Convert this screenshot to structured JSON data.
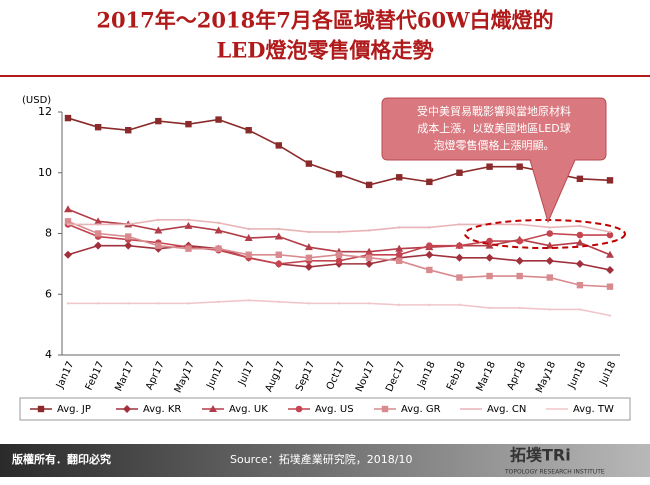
{
  "chart_data": {
    "type": "line",
    "title": [
      "2017年～2018年7月各區域替代60W白熾燈的",
      "LED燈泡零售價格走勢"
    ],
    "y_label": "(USD)",
    "categories": [
      "Jan17",
      "Feb17",
      "Mar17",
      "Apr17",
      "May17",
      "Jun17",
      "Jul17",
      "Aug17",
      "Sep17",
      "Oct17",
      "Nov17",
      "Dec17",
      "Jan18",
      "Feb18",
      "Mar18",
      "Apr18",
      "May18",
      "Jun18",
      "Jul18"
    ],
    "series": [
      {
        "name": "Avg. JP",
        "color": "#8b2a2a",
        "marker": "square",
        "values": [
          11.8,
          11.5,
          11.4,
          11.7,
          11.6,
          11.75,
          11.4,
          10.9,
          10.3,
          9.95,
          9.6,
          9.85,
          9.7,
          10.0,
          10.2,
          10.2,
          10.0,
          9.8,
          9.75
        ]
      },
      {
        "name": "Avg. KR",
        "color": "#a0303c",
        "marker": "diamond",
        "values": [
          7.3,
          7.6,
          7.6,
          7.5,
          7.6,
          7.5,
          7.2,
          7.0,
          6.9,
          7.0,
          7.0,
          7.2,
          7.3,
          7.2,
          7.2,
          7.1,
          7.1,
          7.0,
          6.8
        ]
      },
      {
        "name": "Avg. UK",
        "color": "#b23c48",
        "marker": "triangle",
        "values": [
          8.8,
          8.4,
          8.3,
          8.1,
          8.25,
          8.1,
          7.85,
          7.9,
          7.55,
          7.4,
          7.4,
          7.5,
          7.55,
          7.6,
          7.6,
          7.8,
          7.6,
          7.7,
          7.3
        ]
      },
      {
        "name": "Avg. US",
        "color": "#c4444f",
        "marker": "circle",
        "values": [
          8.3,
          7.9,
          7.8,
          7.7,
          7.55,
          7.45,
          7.2,
          7.0,
          7.1,
          7.1,
          7.3,
          7.3,
          7.6,
          7.6,
          7.75,
          7.75,
          8.0,
          7.95,
          7.95
        ]
      },
      {
        "name": "Avg. GR",
        "color": "#d98a8e",
        "marker": "square",
        "values": [
          8.4,
          8.0,
          7.9,
          7.6,
          7.5,
          7.5,
          7.3,
          7.3,
          7.2,
          7.3,
          7.2,
          7.1,
          6.8,
          6.55,
          6.6,
          6.6,
          6.55,
          6.3,
          6.25
        ]
      },
      {
        "name": "Avg. CN",
        "color": "#e8b4b8",
        "marker": "none",
        "values": [
          8.3,
          8.3,
          8.3,
          8.45,
          8.45,
          8.35,
          8.15,
          8.15,
          8.05,
          8.05,
          8.1,
          8.2,
          8.2,
          8.3,
          8.3,
          8.3,
          8.2,
          8.25,
          8.05
        ]
      },
      {
        "name": "Avg. TW",
        "color": "#f0c6ca",
        "marker": "none",
        "values": [
          5.7,
          5.7,
          5.7,
          5.7,
          5.7,
          5.75,
          5.8,
          5.75,
          5.7,
          5.7,
          5.7,
          5.65,
          5.65,
          5.65,
          5.55,
          5.55,
          5.5,
          5.5,
          5.3
        ]
      }
    ],
    "ylim": [
      4,
      12
    ],
    "yticks": [
      4,
      6,
      8,
      10,
      12
    ],
    "grid": false,
    "annotation": [
      "受中美貿易戰影響與當地原材料",
      "成本上漲，以致美國地區LED球",
      "泡燈零售價格上漲明顯。"
    ]
  },
  "footer": {
    "copyright": "版權所有．翻印必究",
    "source": "Source：拓墣產業研究院，2018/10",
    "logo": "拓墣TRi",
    "logo_sub": "TOPOLOGY RESEARCH INSTITUTE"
  }
}
